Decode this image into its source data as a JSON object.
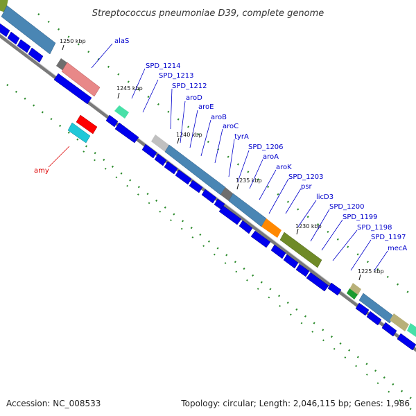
{
  "title": "Streptococcus pneumoniae D39, complete genome",
  "accession": "Accession: NC_008533",
  "topology": "Topology: circular; Length: 2,046,115 bp; Genes: 1,986",
  "ticks": [
    "1250 kbp",
    "1245 kbp",
    "1240 kbp",
    "1235 kbp",
    "1230 kbp",
    "1225 kbp"
  ],
  "gene_labels": [
    {
      "text": "alaS",
      "color": "#0000cc"
    },
    {
      "text": "SPD_1214",
      "color": "#0000cc"
    },
    {
      "text": "SPD_1213",
      "color": "#0000cc"
    },
    {
      "text": "SPD_1212",
      "color": "#0000cc"
    },
    {
      "text": "aroD",
      "color": "#0000cc"
    },
    {
      "text": "aroE",
      "color": "#0000cc"
    },
    {
      "text": "aroB",
      "color": "#0000cc"
    },
    {
      "text": "aroC",
      "color": "#0000cc"
    },
    {
      "text": "tyrA",
      "color": "#0000cc"
    },
    {
      "text": "SPD_1206",
      "color": "#0000cc"
    },
    {
      "text": "aroA",
      "color": "#0000cc"
    },
    {
      "text": "aroK",
      "color": "#0000cc"
    },
    {
      "text": "SPD_1203",
      "color": "#0000cc"
    },
    {
      "text": "psr",
      "color": "#0000cc"
    },
    {
      "text": "licD3",
      "color": "#0000cc"
    },
    {
      "text": "SPD_1200",
      "color": "#0000cc"
    },
    {
      "text": "SPD_1199",
      "color": "#0000cc"
    },
    {
      "text": "SPD_1198",
      "color": "#0000cc"
    },
    {
      "text": "SPD_1197",
      "color": "#0000cc"
    },
    {
      "text": "mecA",
      "color": "#0000cc"
    },
    {
      "text": "amy",
      "color": "#dd0000"
    }
  ],
  "colors": {
    "backbone": "#888888",
    "gene_arrow": "#0000ee",
    "dash_mark": "#2a8a2a",
    "gene_label": "#0000cc",
    "highlight_label": "#dd0000"
  }
}
